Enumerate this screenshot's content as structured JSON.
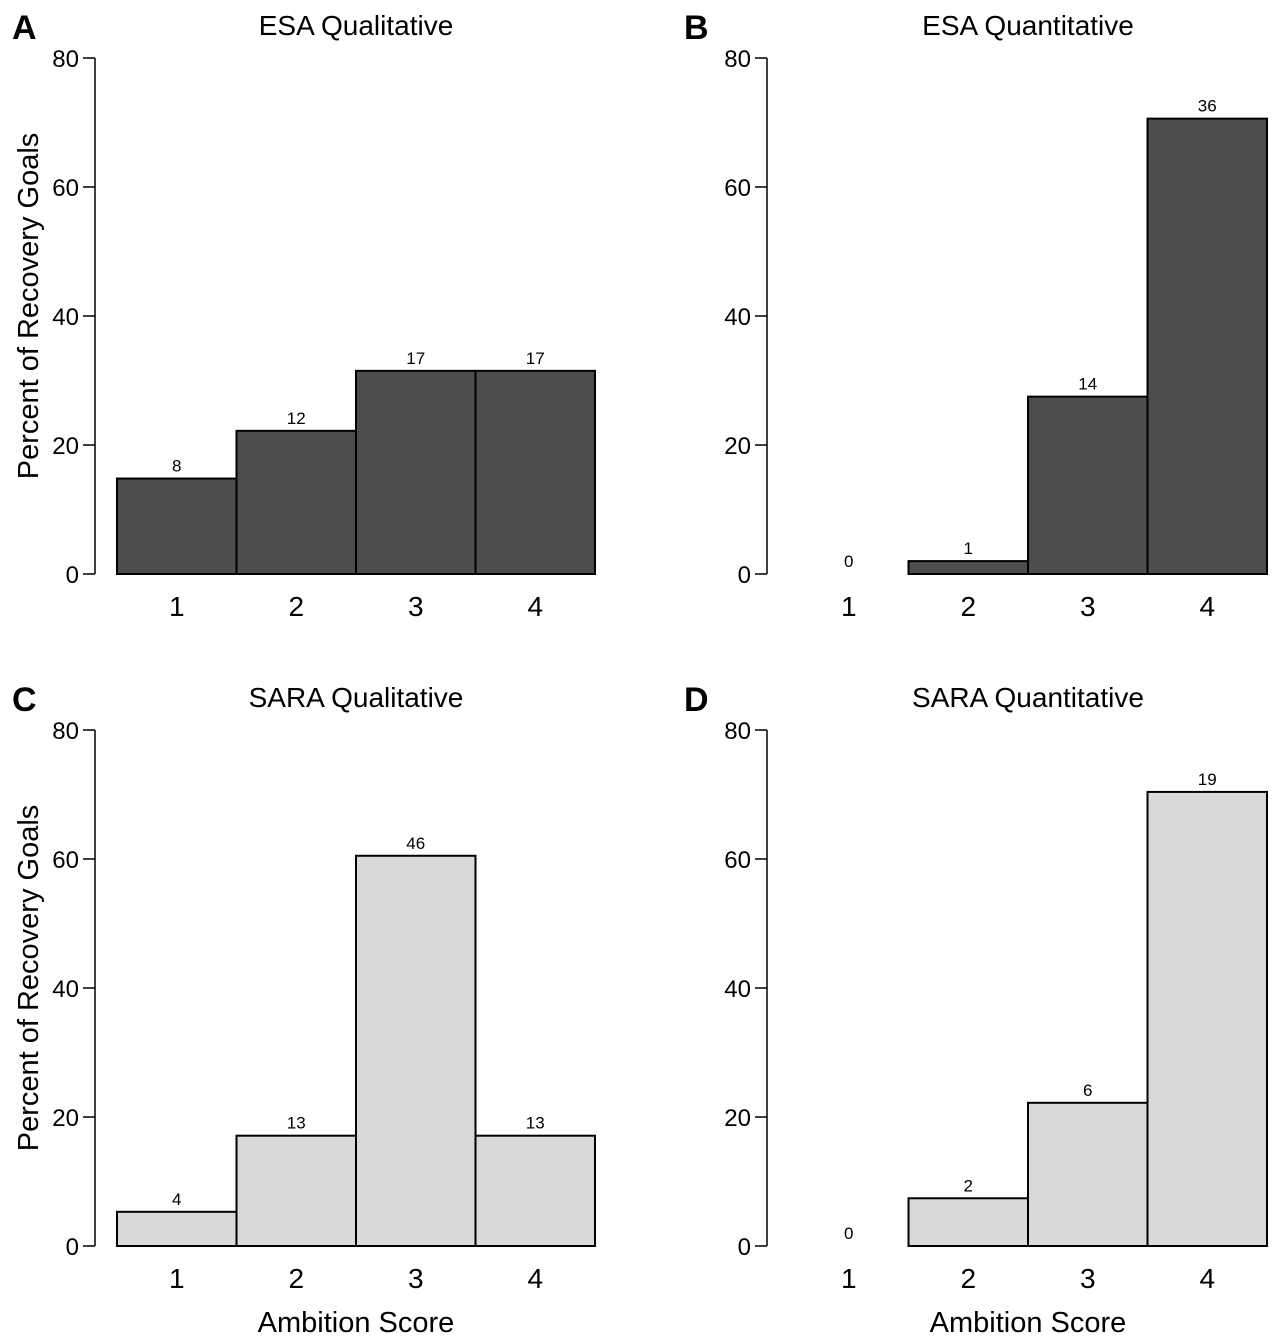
{
  "chart_data": [
    {
      "panel_letter": "A",
      "title": "ESA Qualitative",
      "type": "bar",
      "categories": [
        "1",
        "2",
        "3",
        "4"
      ],
      "values": [
        14.8,
        22.2,
        31.5,
        31.5
      ],
      "counts": [
        "8",
        "12",
        "17",
        "17"
      ],
      "ylabel": "Percent of Recovery Goals",
      "xlabel": "",
      "ylim": [
        0,
        80
      ],
      "yticks": [
        "0",
        "20",
        "40",
        "60",
        "80"
      ],
      "bar_color": "#4d4d4d"
    },
    {
      "panel_letter": "B",
      "title": "ESA Quantitative",
      "type": "bar",
      "categories": [
        "1",
        "2",
        "3",
        "4"
      ],
      "values": [
        0,
        2.0,
        27.5,
        70.6
      ],
      "counts": [
        "0",
        "1",
        "14",
        "36"
      ],
      "ylabel": "",
      "xlabel": "",
      "ylim": [
        0,
        80
      ],
      "yticks": [
        "0",
        "20",
        "40",
        "60",
        "80"
      ],
      "bar_color": "#4d4d4d"
    },
    {
      "panel_letter": "C",
      "title": "SARA Qualitative",
      "type": "bar",
      "categories": [
        "1",
        "2",
        "3",
        "4"
      ],
      "values": [
        5.3,
        17.1,
        60.5,
        17.1
      ],
      "counts": [
        "4",
        "13",
        "46",
        "13"
      ],
      "ylabel": "Percent of Recovery Goals",
      "xlabel": "Ambition Score",
      "ylim": [
        0,
        80
      ],
      "yticks": [
        "0",
        "20",
        "40",
        "60",
        "80"
      ],
      "bar_color": "#d9d9d9"
    },
    {
      "panel_letter": "D",
      "title": "SARA Quantitative",
      "type": "bar",
      "categories": [
        "1",
        "2",
        "3",
        "4"
      ],
      "values": [
        0,
        7.4,
        22.2,
        70.4
      ],
      "counts": [
        "0",
        "2",
        "6",
        "19"
      ],
      "ylabel": "",
      "xlabel": "Ambition Score",
      "ylim": [
        0,
        80
      ],
      "yticks": [
        "0",
        "20",
        "40",
        "60",
        "80"
      ],
      "bar_color": "#d9d9d9"
    }
  ]
}
